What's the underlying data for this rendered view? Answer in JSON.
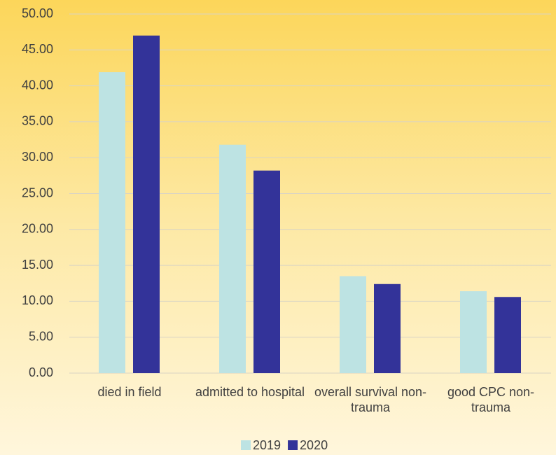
{
  "chart_data": {
    "type": "bar",
    "categories": [
      "died in field",
      "admitted to hospital",
      "overall survival non-trauma",
      "good CPC non-trauma"
    ],
    "series": [
      {
        "name": "2019",
        "color": "#bde3e3",
        "values": [
          41.9,
          31.8,
          13.5,
          11.4
        ]
      },
      {
        "name": "2020",
        "color": "#333399",
        "values": [
          47.0,
          28.2,
          12.4,
          10.6
        ]
      }
    ],
    "ylim": [
      0,
      50
    ],
    "yticks": [
      {
        "value": 0,
        "label": "0.00"
      },
      {
        "value": 5,
        "label": "5.00"
      },
      {
        "value": 10,
        "label": "10.00"
      },
      {
        "value": 15,
        "label": "15.00"
      },
      {
        "value": 20,
        "label": "20.00"
      },
      {
        "value": 25,
        "label": "25.00"
      },
      {
        "value": 30,
        "label": "30.00"
      },
      {
        "value": 35,
        "label": "35.00"
      },
      {
        "value": 40,
        "label": "40.00"
      },
      {
        "value": 45,
        "label": "45.00"
      },
      {
        "value": 50,
        "label": "50.00"
      }
    ],
    "grid": true,
    "legend": "bottom"
  }
}
